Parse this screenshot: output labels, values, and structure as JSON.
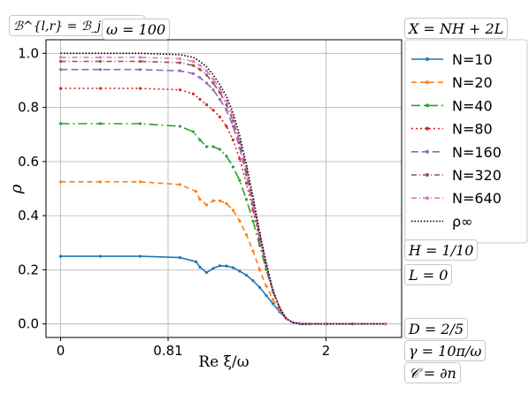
{
  "annotations": {
    "top_left": "ℬ^{l,r} = ℬ_j^{l,r}",
    "omega": "ω = 100",
    "x_def": "X = NH + 2L",
    "H": "H = 1/10",
    "L": "L = 0",
    "D": "D = 2/5",
    "gamma": "γ = 10π/ω",
    "C": "𝒞 = ∂n"
  },
  "chart_data": {
    "type": "line",
    "xlabel": "Re ξ/ω",
    "ylabel": "ρ",
    "xticks": [
      {
        "v": 0,
        "label": "0"
      },
      {
        "v": 0.81,
        "label": "0.81"
      },
      {
        "v": 2,
        "label": "2"
      }
    ],
    "yticks": [
      0.0,
      0.2,
      0.4,
      0.6,
      0.8,
      1.0
    ],
    "ytick_labels": [
      "0.0",
      "0.2",
      "0.4",
      "0.6",
      "0.8",
      "1.0"
    ],
    "xlim": [
      -0.11,
      2.57
    ],
    "ylim": [
      -0.05,
      1.05
    ],
    "grid": true,
    "legend_position": "right",
    "series": [
      {
        "name": "N=10",
        "color": "#1f77b4",
        "dash": "",
        "marker": "dot",
        "x": [
          0,
          0.3,
          0.6,
          0.9,
          1.02,
          1.05,
          1.1,
          1.15,
          1.2,
          1.25,
          1.3,
          1.35,
          1.4,
          1.45,
          1.5,
          1.55,
          1.6,
          1.65,
          1.7,
          1.75,
          1.82,
          1.88,
          2.0,
          2.2,
          2.45
        ],
        "y": [
          0.25,
          0.25,
          0.25,
          0.245,
          0.23,
          0.21,
          0.19,
          0.205,
          0.215,
          0.214,
          0.208,
          0.195,
          0.18,
          0.16,
          0.135,
          0.105,
          0.075,
          0.045,
          0.02,
          0.005,
          0.0,
          0.0,
          0.0,
          0.0,
          0.0
        ]
      },
      {
        "name": "N=20",
        "color": "#ff7f0e",
        "dash": "6 4",
        "marker": "dot",
        "x": [
          0,
          0.3,
          0.6,
          0.9,
          1.02,
          1.05,
          1.1,
          1.15,
          1.2,
          1.25,
          1.3,
          1.35,
          1.4,
          1.45,
          1.5,
          1.55,
          1.6,
          1.65,
          1.7,
          1.75,
          1.8,
          1.85,
          2.0,
          2.2,
          2.45
        ],
        "y": [
          0.525,
          0.525,
          0.525,
          0.515,
          0.49,
          0.46,
          0.44,
          0.455,
          0.455,
          0.445,
          0.42,
          0.38,
          0.33,
          0.27,
          0.2,
          0.14,
          0.09,
          0.05,
          0.02,
          0.005,
          0.002,
          0.0,
          0.0,
          0.0,
          0.0
        ]
      },
      {
        "name": "N=40",
        "color": "#2ca02c",
        "dash": "10 4 2 4",
        "marker": "dot",
        "x": [
          0,
          0.3,
          0.6,
          0.9,
          1.0,
          1.05,
          1.1,
          1.15,
          1.2,
          1.25,
          1.3,
          1.35,
          1.4,
          1.45,
          1.5,
          1.55,
          1.6,
          1.65,
          1.7,
          1.75,
          1.8,
          1.85,
          2.0,
          2.2,
          2.45
        ],
        "y": [
          0.74,
          0.74,
          0.74,
          0.73,
          0.71,
          0.68,
          0.655,
          0.655,
          0.645,
          0.62,
          0.58,
          0.53,
          0.46,
          0.38,
          0.29,
          0.2,
          0.12,
          0.06,
          0.02,
          0.005,
          0.002,
          0.0,
          0.0,
          0.0,
          0.0
        ]
      },
      {
        "name": "N=80",
        "color": "#d62728",
        "dash": "2 3",
        "marker": "dot",
        "x": [
          0,
          0.3,
          0.6,
          0.9,
          1.0,
          1.05,
          1.1,
          1.15,
          1.2,
          1.25,
          1.3,
          1.35,
          1.4,
          1.45,
          1.5,
          1.55,
          1.6,
          1.65,
          1.7,
          1.75,
          1.8,
          1.85,
          2.0,
          2.2,
          2.45
        ],
        "y": [
          0.87,
          0.87,
          0.87,
          0.865,
          0.85,
          0.83,
          0.81,
          0.79,
          0.765,
          0.73,
          0.68,
          0.61,
          0.52,
          0.42,
          0.31,
          0.21,
          0.12,
          0.06,
          0.02,
          0.005,
          0.002,
          0.0,
          0.0,
          0.0,
          0.0
        ]
      },
      {
        "name": "N=160",
        "color": "#9467bd",
        "dash": "8 4",
        "marker": "tri",
        "x": [
          0,
          0.3,
          0.6,
          0.9,
          1.0,
          1.05,
          1.1,
          1.15,
          1.2,
          1.25,
          1.3,
          1.35,
          1.4,
          1.45,
          1.5,
          1.55,
          1.6,
          1.65,
          1.7,
          1.75,
          1.8,
          1.85,
          2.0,
          2.2,
          2.45
        ],
        "y": [
          0.94,
          0.94,
          0.94,
          0.935,
          0.925,
          0.91,
          0.89,
          0.865,
          0.83,
          0.79,
          0.73,
          0.65,
          0.55,
          0.44,
          0.32,
          0.21,
          0.12,
          0.06,
          0.02,
          0.005,
          0.002,
          0.0,
          0.0,
          0.0,
          0.0
        ]
      },
      {
        "name": "N=320",
        "color": "#8c564b",
        "dash": "6 3 1 3",
        "marker": "dot",
        "x": [
          0,
          0.3,
          0.6,
          0.9,
          1.0,
          1.05,
          1.1,
          1.15,
          1.2,
          1.25,
          1.3,
          1.35,
          1.4,
          1.45,
          1.5,
          1.55,
          1.6,
          1.65,
          1.7,
          1.75,
          1.8,
          1.85,
          2.0,
          2.2,
          2.45
        ],
        "y": [
          0.97,
          0.97,
          0.97,
          0.965,
          0.955,
          0.94,
          0.92,
          0.89,
          0.855,
          0.81,
          0.75,
          0.67,
          0.57,
          0.45,
          0.33,
          0.215,
          0.12,
          0.06,
          0.02,
          0.005,
          0.002,
          0.0,
          0.0,
          0.0,
          0.0
        ]
      },
      {
        "name": "N=640",
        "color": "#e377c2",
        "dash": "6 3 1 3",
        "marker": "dot",
        "x": [
          0,
          0.3,
          0.6,
          0.9,
          1.0,
          1.05,
          1.1,
          1.15,
          1.2,
          1.25,
          1.3,
          1.35,
          1.4,
          1.45,
          1.5,
          1.55,
          1.6,
          1.65,
          1.7,
          1.75,
          1.8,
          1.85,
          2.0,
          2.2,
          2.45
        ],
        "y": [
          0.985,
          0.985,
          0.985,
          0.98,
          0.97,
          0.955,
          0.935,
          0.905,
          0.87,
          0.825,
          0.765,
          0.68,
          0.58,
          0.46,
          0.335,
          0.22,
          0.125,
          0.06,
          0.02,
          0.005,
          0.002,
          0.0,
          0.0,
          0.0,
          0.0
        ]
      },
      {
        "name": "ρ∞",
        "color": "#000000",
        "dash": "1.5 2",
        "marker": "none",
        "x": [
          0,
          0.3,
          0.6,
          0.9,
          1.0,
          1.05,
          1.1,
          1.15,
          1.2,
          1.25,
          1.3,
          1.35,
          1.4,
          1.45,
          1.5,
          1.55,
          1.6,
          1.65,
          1.7,
          1.75,
          1.8,
          1.85,
          2.0,
          2.2,
          2.45
        ],
        "y": [
          1.0,
          1.0,
          1.0,
          0.995,
          0.985,
          0.97,
          0.95,
          0.92,
          0.885,
          0.84,
          0.78,
          0.695,
          0.59,
          0.47,
          0.34,
          0.225,
          0.125,
          0.06,
          0.02,
          0.005,
          0.0,
          0.0,
          0.0,
          0.0,
          0.0
        ]
      }
    ]
  }
}
